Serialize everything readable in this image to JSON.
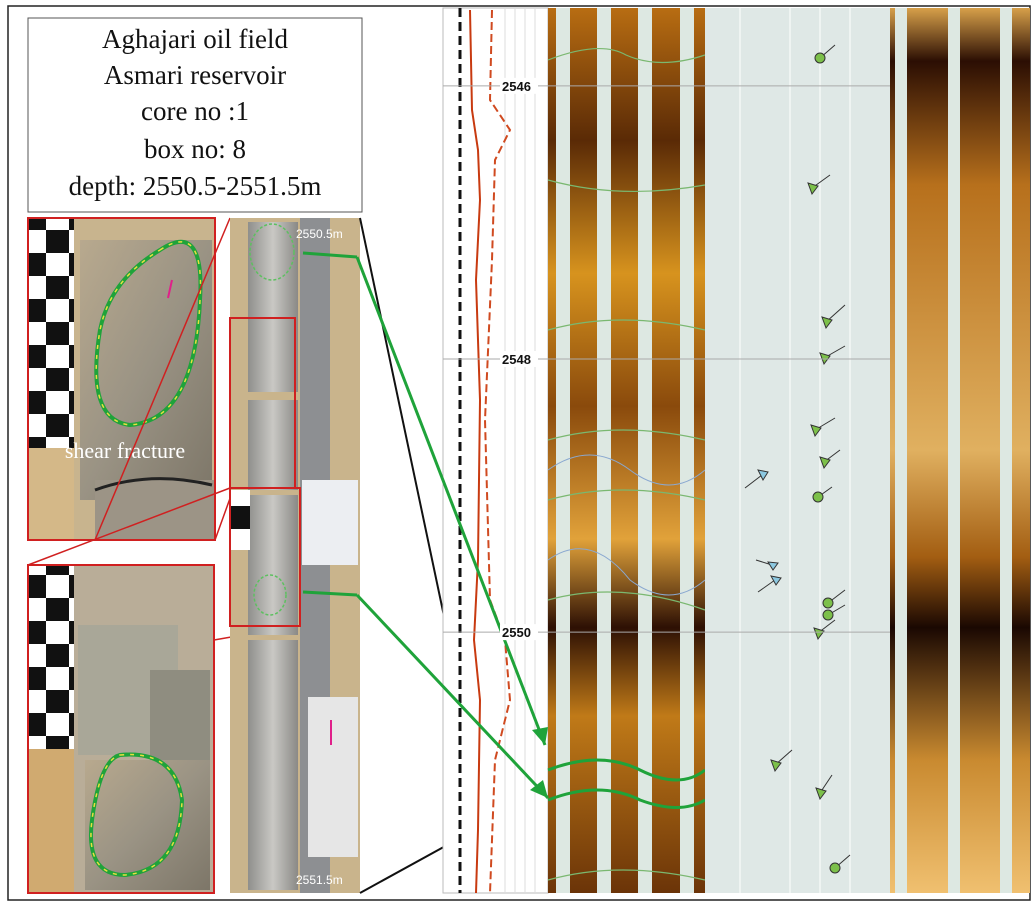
{
  "title_box": {
    "lines": [
      "Aghajari oil field",
      "Asmari reservoir",
      "core no :1",
      "box no: 8",
      "depth: 2550.5-2551.5m"
    ]
  },
  "photo_labels": {
    "fracture": "shear fracture",
    "top_depth": "2550.5m",
    "bottom_depth": "2551.5m"
  },
  "depth_track": {
    "ylim": [
      2545.43,
      2551.91
    ],
    "yticks": [
      2546,
      2548,
      2550
    ]
  }
}
